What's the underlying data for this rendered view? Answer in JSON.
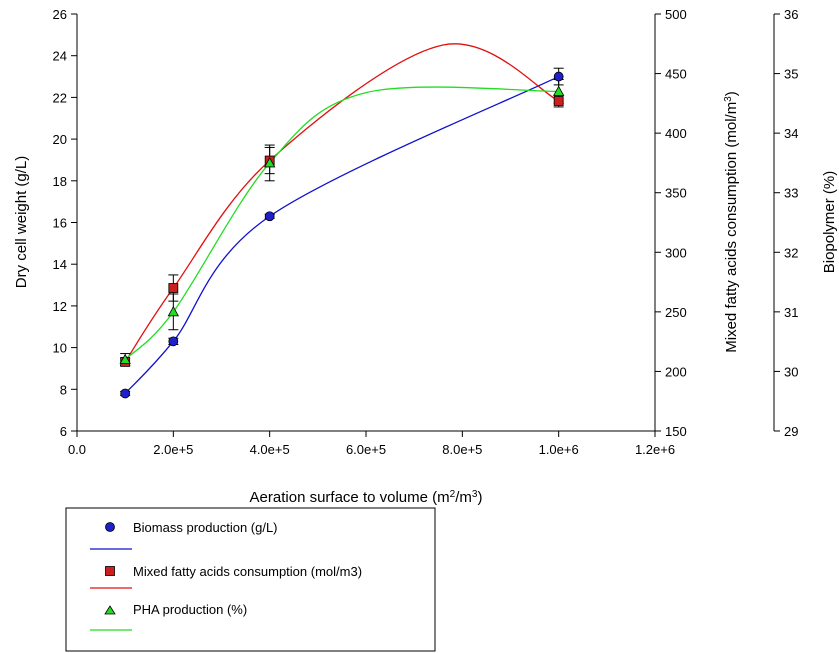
{
  "chart_data": {
    "type": "scatter",
    "xlabel": "Aeration surface to volume (m²/m³)",
    "x_ticks": [
      "0.0",
      "2.0e+5",
      "4.0e+5",
      "6.0e+5",
      "8.0e+5",
      "1.0e+6",
      "1.2e+6"
    ],
    "xlim": [
      0,
      1200000
    ],
    "axes": {
      "y_left": {
        "label": "Dry cell weight (g/L)",
        "range": [
          6,
          26
        ],
        "ticks": [
          "6",
          "8",
          "10",
          "12",
          "14",
          "16",
          "18",
          "20",
          "22",
          "24",
          "26"
        ]
      },
      "y_right1": {
        "label": "Mixed fatty acids consumption (mol/m³)",
        "range": [
          150,
          500
        ],
        "ticks": [
          "150",
          "200",
          "250",
          "300",
          "350",
          "400",
          "450",
          "500"
        ]
      },
      "y_right2": {
        "label": "Biopolymer (%)",
        "range": [
          29,
          36
        ],
        "ticks": [
          "29",
          "30",
          "31",
          "32",
          "33",
          "34",
          "35",
          "36"
        ]
      }
    },
    "series": [
      {
        "name": "Biomass production (g/L)",
        "axis": "y_left",
        "marker": "circle",
        "color": "#1f1fcc",
        "line_color": "#1010cc",
        "x": [
          100000,
          200000,
          400000,
          1000000
        ],
        "y": [
          7.8,
          10.3,
          16.3,
          23.0
        ],
        "err": [
          0.1,
          0.15,
          0.1,
          0.4
        ],
        "curve_y": [
          7.8,
          10.3,
          16.3,
          23.0
        ]
      },
      {
        "name": "Mixed fatty acids consumption (mol/m3)",
        "axis": "y_right1",
        "marker": "square",
        "color": "#cc1f1f",
        "line_color": "#e01010",
        "x": [
          100000,
          200000,
          400000,
          1000000
        ],
        "y": [
          208,
          270,
          377,
          427
        ],
        "err": [
          3,
          11,
          11,
          5
        ],
        "curve_peak": {
          "x": 760000,
          "y": 474
        }
      },
      {
        "name": "PHA production (%)",
        "axis": "y_right2",
        "marker": "triangle",
        "color": "#22dd22",
        "line_color": "#22dd22",
        "x": [
          100000,
          200000,
          400000,
          1000000
        ],
        "y": [
          30.2,
          31.0,
          33.5,
          34.7
        ],
        "err": [
          0.1,
          0.3,
          0.3,
          0.2
        ],
        "plateau": 34.7
      }
    ]
  },
  "legend": {
    "items": [
      {
        "label": "Biomass production (g/L)"
      },
      {
        "label": "Mixed fatty acids consumption (mol/m3)"
      },
      {
        "label": "PHA production (%)"
      }
    ]
  }
}
